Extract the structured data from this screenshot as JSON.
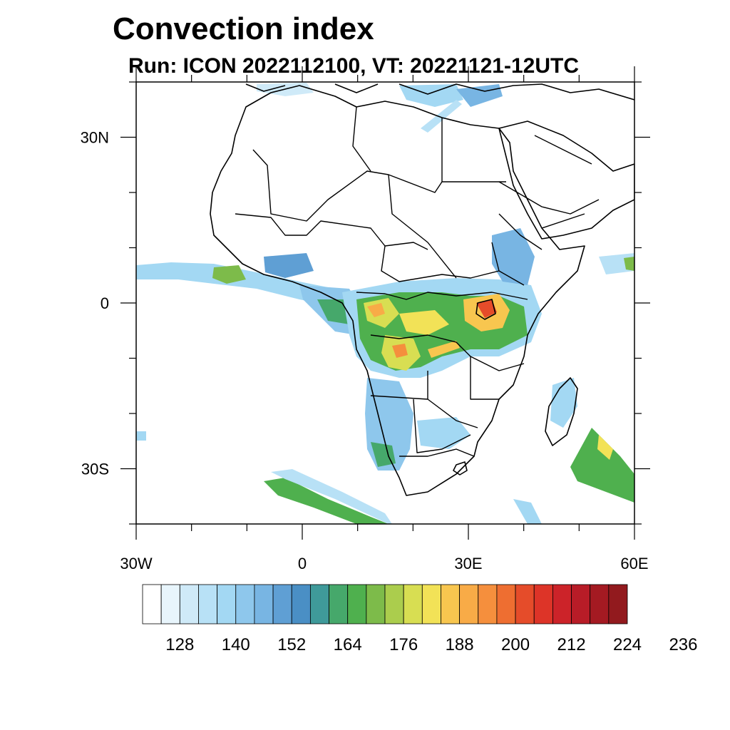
{
  "title": "Convection index",
  "subtitle": "Run: ICON 2022112100,  VT: 20221121-12UTC",
  "map": {
    "lon_range": [
      -30,
      60
    ],
    "lat_range": [
      -40,
      40
    ],
    "lat_ticks": [
      {
        "value": 30,
        "label": "30N"
      },
      {
        "value": 0,
        "label": "0"
      },
      {
        "value": -30,
        "label": "30S"
      }
    ],
    "lon_ticks": [
      {
        "value": -30,
        "label": "30W"
      },
      {
        "value": 0,
        "label": "0"
      },
      {
        "value": 30,
        "label": "30E"
      },
      {
        "value": 60,
        "label": "60E"
      }
    ],
    "minor_lon_step": 10,
    "minor_lat_step": 10
  },
  "colorbar": {
    "labels": [
      "128",
      "140",
      "152",
      "164",
      "176",
      "188",
      "200",
      "212",
      "224",
      "236"
    ],
    "colors": [
      "#ffffff",
      "#e8f5fc",
      "#cfeaf8",
      "#b8e1f6",
      "#a3d8f3",
      "#8ec7ec",
      "#78b5e3",
      "#5f9fd4",
      "#4a8fc5",
      "#3f9a9a",
      "#46a86b",
      "#4fb04e",
      "#7dbb4a",
      "#abcd4d",
      "#d8de52",
      "#f2e257",
      "#f8c64f",
      "#f8ab47",
      "#f58f3d",
      "#ee6e31",
      "#e54c2a",
      "#dd3428",
      "#cc2329",
      "#b81c27",
      "#a41a22",
      "#921a1e"
    ]
  }
}
